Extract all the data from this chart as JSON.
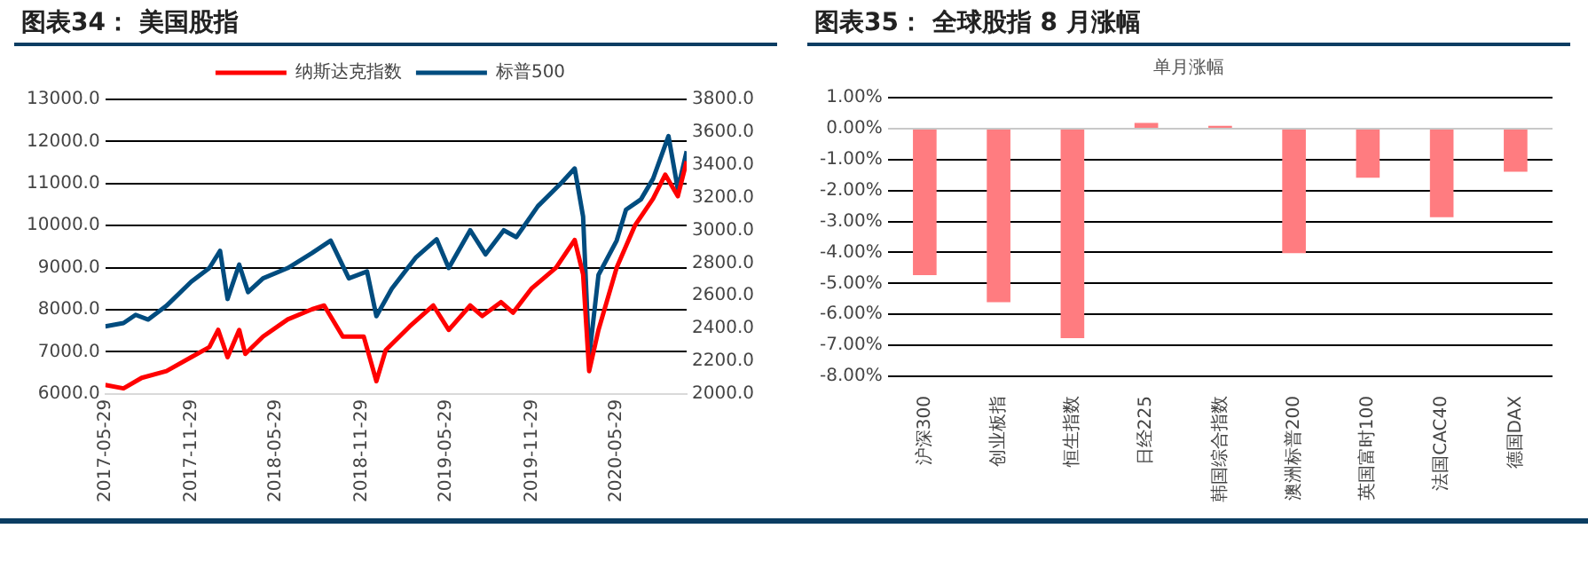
{
  "chart_data": [
    {
      "type": "line",
      "title": "图表34： 美国股指",
      "legend": "top",
      "grid": "y",
      "marker": "none",
      "line_style": "solid",
      "xlim": [
        "2017-05-29",
        "2020-10-26"
      ],
      "xticks": [
        "2017-05-29",
        "2017-11-29",
        "2018-05-29",
        "2018-11-29",
        "2019-05-29",
        "2019-11-29",
        "2020-05-29"
      ],
      "ylim": [
        6000,
        13000
      ],
      "yticks": [
        {
          "value": 6000,
          "label": "6000.0"
        },
        {
          "value": 7000,
          "label": "7000.0"
        },
        {
          "value": 8000,
          "label": "8000.0"
        },
        {
          "value": 9000,
          "label": "9000.0"
        },
        {
          "value": 10000,
          "label": "10000.0"
        },
        {
          "value": 11000,
          "label": "11000.0"
        },
        {
          "value": 12000,
          "label": "12000.0"
        },
        {
          "value": 13000,
          "label": "13000.0"
        }
      ],
      "y2lim": [
        2000,
        3800
      ],
      "y2ticks": [
        {
          "value": 2000,
          "label": "2000.0"
        },
        {
          "value": 2200,
          "label": "2200.0"
        },
        {
          "value": 2400,
          "label": "2400.0"
        },
        {
          "value": 2600,
          "label": "2600.0"
        },
        {
          "value": 2800,
          "label": "2800.0"
        },
        {
          "value": 3000,
          "label": "3000.0"
        },
        {
          "value": 3200,
          "label": "3200.0"
        },
        {
          "value": 3400,
          "label": "3400.0"
        },
        {
          "value": 3600,
          "label": "3600.0"
        },
        {
          "value": 3800,
          "label": "3800.0"
        }
      ],
      "series": [
        {
          "name": "纳斯达克指数",
          "color": "#ff0000",
          "x": [
            "2017-05-29",
            "2017-07-07",
            "2017-08-15",
            "2017-10-07",
            "2017-11-29",
            "2018-01-07",
            "2018-01-26",
            "2018-02-15",
            "2018-03-12",
            "2018-03-25",
            "2018-05-02",
            "2018-06-24",
            "2018-08-15",
            "2018-09-10",
            "2018-10-20",
            "2018-12-04",
            "2018-12-31",
            "2019-01-20",
            "2019-03-12",
            "2019-05-02",
            "2019-06-04",
            "2019-07-20",
            "2019-08-15",
            "2019-09-24",
            "2019-10-20",
            "2019-11-29",
            "2020-01-20",
            "2020-02-29",
            "2020-03-18",
            "2020-03-31",
            "2020-04-20",
            "2020-05-29",
            "2020-07-07",
            "2020-08-15",
            "2020-09-10",
            "2020-10-07",
            "2020-10-26"
          ],
          "values": [
            6210,
            6130,
            6380,
            6540,
            6870,
            7110,
            7520,
            6870,
            7520,
            6950,
            7360,
            7770,
            8010,
            8100,
            7360,
            7360,
            6300,
            7040,
            7600,
            8100,
            7520,
            8100,
            7850,
            8180,
            7930,
            8510,
            9000,
            9660,
            8840,
            6540,
            7520,
            9000,
            10000,
            10640,
            11210,
            10700,
            11530
          ]
        },
        {
          "name": "标普500",
          "color": "#004c7f",
          "axis": "y2",
          "x": [
            "2017-05-29",
            "2017-07-07",
            "2017-08-02",
            "2017-08-29",
            "2017-10-07",
            "2017-11-29",
            "2018-01-07",
            "2018-01-30",
            "2018-02-15",
            "2018-03-12",
            "2018-03-31",
            "2018-05-02",
            "2018-06-24",
            "2018-08-15",
            "2018-09-24",
            "2018-11-02",
            "2018-12-11",
            "2018-12-31",
            "2019-02-02",
            "2019-03-25",
            "2019-05-09",
            "2019-06-04",
            "2019-07-20",
            "2019-08-22",
            "2019-09-30",
            "2019-10-27",
            "2019-12-12",
            "2020-02-02",
            "2020-02-29",
            "2020-03-18",
            "2020-03-31",
            "2020-04-20",
            "2020-05-29",
            "2020-06-18",
            "2020-07-20",
            "2020-08-15",
            "2020-09-17",
            "2020-10-07",
            "2020-10-26"
          ],
          "values": [
            2412,
            2433,
            2483,
            2454,
            2538,
            2685,
            2769,
            2874,
            2580,
            2790,
            2622,
            2706,
            2769,
            2861,
            2937,
            2706,
            2748,
            2475,
            2643,
            2832,
            2945,
            2769,
            3000,
            2853,
            3000,
            2958,
            3147,
            3294,
            3378,
            3084,
            2223,
            2727,
            2937,
            3126,
            3189,
            3315,
            3576,
            3252,
            3483
          ]
        }
      ]
    },
    {
      "type": "bar",
      "title": "图表35： 全球股指 8 月涨幅",
      "subtitle": "单月涨幅",
      "grid": "y",
      "categories": [
        "沪深300",
        "创业板指",
        "恒生指数",
        "日经225",
        "韩国综合指数",
        "澳洲标普200",
        "英国富时100",
        "法国CAC40",
        "德国DAX"
      ],
      "values": [
        -4.73,
        -5.61,
        -6.77,
        0.18,
        0.09,
        -4.02,
        -1.59,
        -2.86,
        -1.39
      ],
      "color": "#ff7c80",
      "ylim": [
        -8,
        1
      ],
      "yticks": [
        {
          "value": -8,
          "label": "-8.00%"
        },
        {
          "value": -7,
          "label": "-7.00%"
        },
        {
          "value": -6,
          "label": "-6.00%"
        },
        {
          "value": -5,
          "label": "-5.00%"
        },
        {
          "value": -4,
          "label": "-4.00%"
        },
        {
          "value": -3,
          "label": "-3.00%"
        },
        {
          "value": -2,
          "label": "-2.00%"
        },
        {
          "value": -1,
          "label": "-1.00%"
        },
        {
          "value": 0,
          "label": "0.00%"
        },
        {
          "value": 1,
          "label": "1.00%"
        }
      ]
    }
  ]
}
